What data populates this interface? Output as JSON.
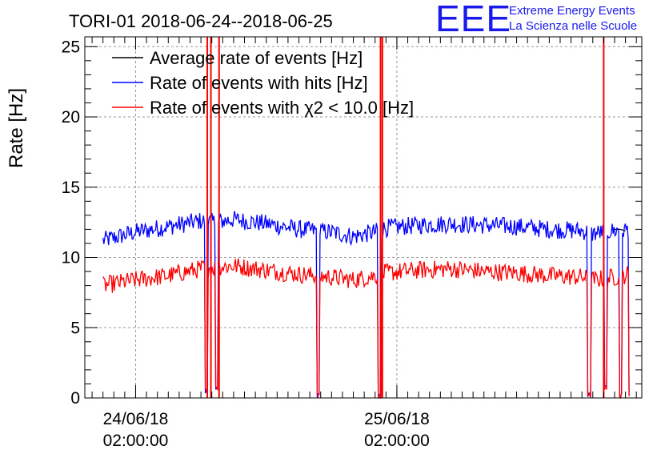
{
  "chart_data": {
    "type": "line",
    "title": "TORI-01 2018-06-24--2018-06-25",
    "ylabel": "Rate [Hz]",
    "xlabel": "",
    "ylim": [
      0,
      25.7
    ],
    "yticks": [
      0,
      5,
      10,
      15,
      20,
      25
    ],
    "xlim": [
      "2018-06-23 21:20",
      "2018-06-26 00:30"
    ],
    "xticks": [
      {
        "t": "2018-06-24 02:00",
        "line1": "24/06/18",
        "line2": "02:00:00"
      },
      {
        "t": "2018-06-25 02:00",
        "line1": "25/06/18",
        "line2": "02:00:00"
      }
    ],
    "grid": true,
    "legend_position": "top-left",
    "series": [
      {
        "name": "Average rate of events [Hz]",
        "color": "#000000",
        "x": [
          "2018-06-25 22:00",
          "2018-06-25 22:30",
          "2018-06-25 23:00"
        ],
        "y": [
          12.0,
          12.0,
          11.9
        ]
      },
      {
        "name": "Rate of events with hits [Hz]",
        "color": "#0000ff",
        "x": [
          "2018-06-23 23:00",
          "2018-06-24 02:00",
          "2018-06-24 05:00",
          "2018-06-24 08:00",
          "2018-06-24 09:10",
          "2018-06-24 11:00",
          "2018-06-24 14:00",
          "2018-06-24 17:00",
          "2018-06-24 20:00",
          "2018-06-24 22:00",
          "2018-06-25 00:00",
          "2018-06-25 01:00",
          "2018-06-25 04:00",
          "2018-06-25 07:00",
          "2018-06-25 10:00",
          "2018-06-25 13:00",
          "2018-06-25 16:00",
          "2018-06-25 19:00",
          "2018-06-25 20:00",
          "2018-06-25 22:00",
          "2018-06-25 23:20"
        ],
        "y": [
          11.2,
          11.8,
          12.2,
          12.6,
          12.5,
          12.7,
          12.4,
          12.0,
          11.8,
          11.5,
          11.8,
          12.1,
          12.3,
          12.4,
          12.3,
          12.2,
          12.0,
          11.9,
          11.7,
          11.9,
          12.0
        ]
      },
      {
        "name": "Rate of events with χ2 < 10.0 [Hz]",
        "color": "#ff0000",
        "x": [
          "2018-06-23 23:00",
          "2018-06-24 02:00",
          "2018-06-24 05:00",
          "2018-06-24 08:00",
          "2018-06-24 09:10",
          "2018-06-24 11:00",
          "2018-06-24 14:00",
          "2018-06-24 17:00",
          "2018-06-24 20:00",
          "2018-06-24 22:00",
          "2018-06-25 00:00",
          "2018-06-25 01:00",
          "2018-06-25 04:00",
          "2018-06-25 07:00",
          "2018-06-25 10:00",
          "2018-06-25 13:00",
          "2018-06-25 16:00",
          "2018-06-25 19:00",
          "2018-06-25 20:00",
          "2018-06-25 22:00",
          "2018-06-25 23:20"
        ],
        "y": [
          8.0,
          8.4,
          8.7,
          9.2,
          9.3,
          9.4,
          9.1,
          8.8,
          8.6,
          8.4,
          8.7,
          8.9,
          9.1,
          9.2,
          9.0,
          8.9,
          8.7,
          8.6,
          8.4,
          8.6,
          8.8
        ]
      }
    ],
    "dropouts": [
      {
        "t": "2018-06-24 08:30",
        "min": 0.3
      },
      {
        "t": "2018-06-24 09:25",
        "min": 0.5
      },
      {
        "t": "2018-06-24 18:45",
        "min": 0.0
      },
      {
        "t": "2018-06-25 00:25",
        "min": 0.0
      },
      {
        "t": "2018-06-25 19:40",
        "min": 0.0
      },
      {
        "t": "2018-06-25 21:10",
        "min": 0.5
      },
      {
        "t": "2018-06-25 22:35",
        "min": 0.0
      },
      {
        "t": "2018-06-25 23:25",
        "min": 0.0
      }
    ],
    "spikes": [
      {
        "t": "2018-06-24 08:35",
        "color": "#ff0000"
      },
      {
        "t": "2018-06-24 08:55",
        "color": "#ff0000"
      },
      {
        "t": "2018-06-24 09:40",
        "color": "#ff0000"
      },
      {
        "t": "2018-06-25 00:30",
        "color": "#ff0000"
      },
      {
        "t": "2018-06-25 00:40",
        "color": "#ff0000"
      },
      {
        "t": "2018-06-25 21:00",
        "color": "#ff0000"
      }
    ]
  },
  "logo": {
    "big": "EEE",
    "line1": "Extreme Energy Events",
    "line2": "La Scienza nelle Scuole",
    "color": "#1a1aee"
  }
}
